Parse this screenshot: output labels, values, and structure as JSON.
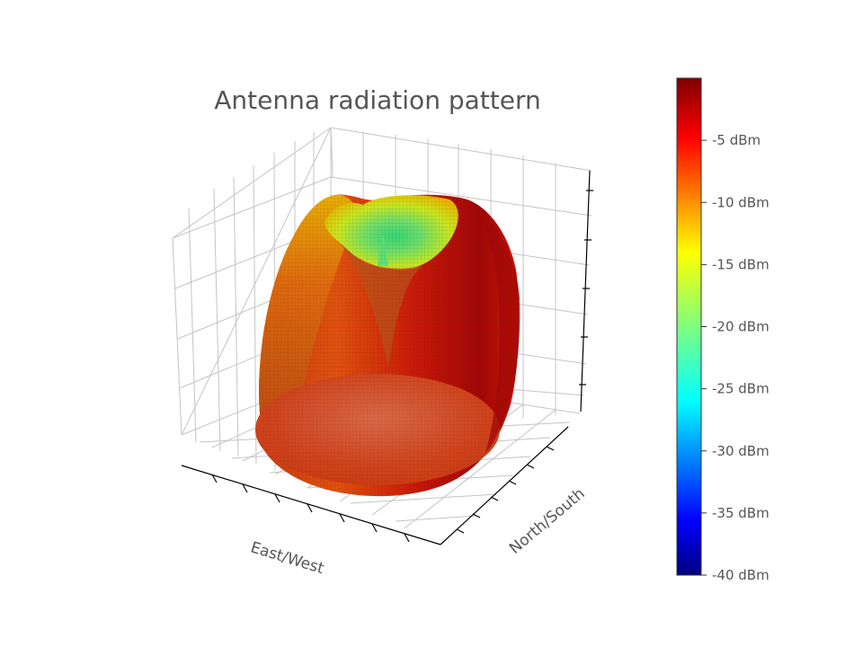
{
  "chart_data": {
    "type": "surface3d",
    "title": "Antenna radiation pattern",
    "xlabel": "East/West",
    "ylabel": "North/South",
    "zlabel": "",
    "colorbar": {
      "colormap": "jet",
      "range": [
        -40,
        0
      ],
      "ticks": [
        -5,
        -10,
        -15,
        -20,
        -25,
        -30,
        -35,
        -40
      ],
      "tick_labels": [
        "-5 dBm",
        "-10 dBm",
        "-15 dBm",
        "-20 dBm",
        "-25 dBm",
        "-30 dBm",
        "-35 dBm",
        "-40 dBm"
      ]
    },
    "grid": true,
    "surface": {
      "description_values": "radiation gain per direction",
      "max_gain_dBm": -1,
      "min_gain_dBm": -22,
      "null_direction": "zenith (top)"
    }
  }
}
